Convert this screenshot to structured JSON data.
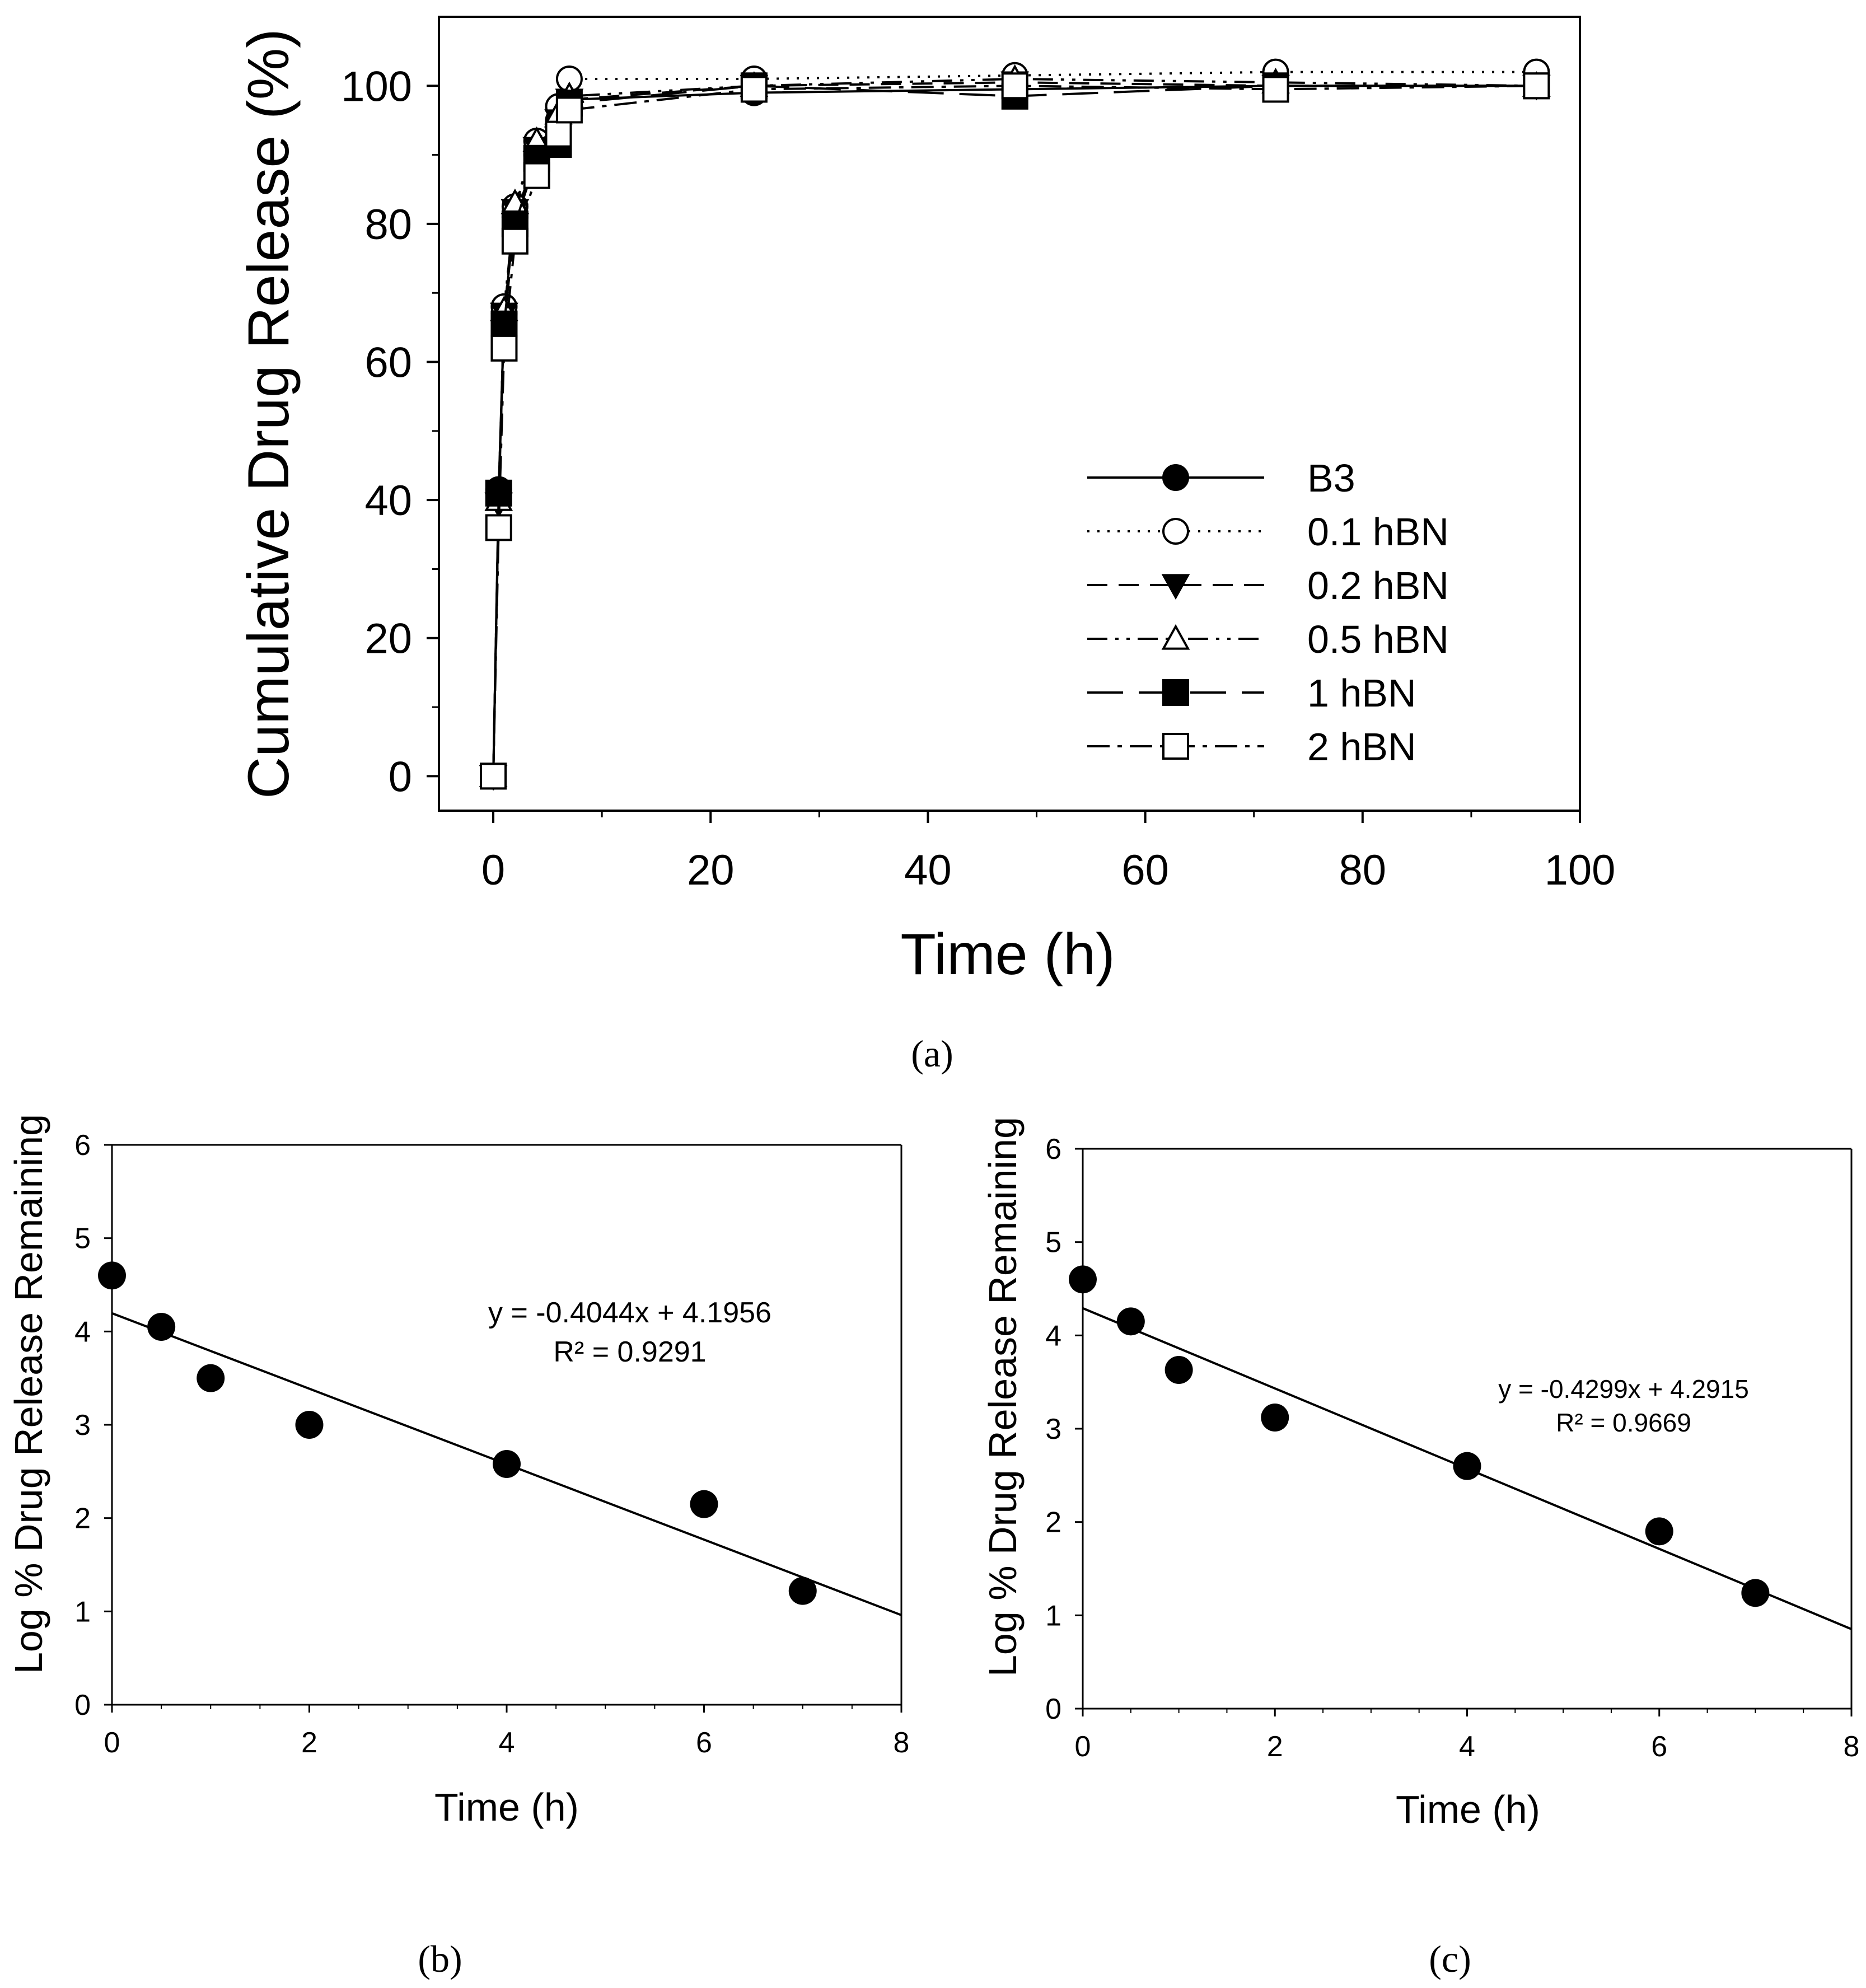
{
  "figure_panels": {
    "a": "(a)",
    "b": "(b)",
    "c": "(c)"
  },
  "colors": {
    "ink": "#000000",
    "background": "#ffffff",
    "hollow_fill": "#ffffff"
  },
  "chart_data": [
    {
      "id": "a",
      "type": "line",
      "xlabel": "Time (h)",
      "ylabel": "Cumulative Drug Release (%)",
      "xlim": [
        -5,
        100
      ],
      "ylim": [
        -5,
        110
      ],
      "xticks": [
        0,
        20,
        40,
        60,
        80,
        100
      ],
      "yticks": [
        0,
        20,
        40,
        60,
        80,
        100
      ],
      "legend_position": "center-right",
      "series": [
        {
          "name": "B3",
          "marker": "filled-circle",
          "dash": "solid",
          "x": [
            0,
            0.5,
            1,
            2,
            4,
            6,
            7,
            24,
            48,
            72,
            96
          ],
          "y": [
            0,
            41.5,
            67,
            81,
            90,
            95,
            98,
            99,
            99.5,
            100,
            100
          ]
        },
        {
          "name": "0.1 hBN",
          "marker": "open-circle",
          "dash": "dotted",
          "x": [
            0,
            0.5,
            1,
            2,
            4,
            6,
            7,
            24,
            48,
            72,
            96
          ],
          "y": [
            0,
            41,
            68,
            82.5,
            92,
            97,
            101,
            101,
            101.5,
            102,
            102
          ]
        },
        {
          "name": "0.2 hBN",
          "marker": "filled-triangle-down",
          "dash": "dashed",
          "x": [
            0,
            0.5,
            1,
            2,
            4,
            6,
            7,
            24,
            48,
            72,
            96
          ],
          "y": [
            0,
            39.5,
            67,
            82,
            91,
            95,
            98,
            100,
            100.5,
            100,
            100
          ]
        },
        {
          "name": "0.5 hBN",
          "marker": "open-triangle-up",
          "dash": "dash-dot-dot",
          "x": [
            0,
            0.5,
            1,
            2,
            4,
            6,
            7,
            24,
            48,
            72,
            96
          ],
          "y": [
            0,
            40,
            67.5,
            83,
            92,
            96,
            98.5,
            100,
            101,
            100.5,
            100
          ]
        },
        {
          "name": "1 hBN",
          "marker": "filled-square",
          "dash": "long-dash",
          "x": [
            0,
            0.5,
            1,
            2,
            4,
            6,
            7,
            24,
            48,
            72,
            96
          ],
          "y": [
            0,
            41,
            65.5,
            80,
            89.5,
            91.5,
            97.5,
            100,
            98.5,
            100,
            100
          ]
        },
        {
          "name": "2 hBN",
          "marker": "open-square",
          "dash": "dash-dot",
          "x": [
            0,
            0.5,
            1,
            2,
            4,
            6,
            7,
            24,
            48,
            72,
            96
          ],
          "y": [
            0,
            36,
            62,
            77.5,
            87,
            93,
            96.5,
            99.5,
            100,
            99.5,
            100
          ]
        }
      ]
    },
    {
      "id": "b",
      "type": "scatter",
      "xlabel": "Time (h)",
      "ylabel": "Log % Drug Release Remaining",
      "xlim": [
        0,
        8
      ],
      "ylim": [
        0,
        6
      ],
      "xticks": [
        0,
        2,
        4,
        6,
        8
      ],
      "yticks": [
        0,
        1,
        2,
        3,
        4,
        5,
        6
      ],
      "points": {
        "x": [
          0,
          0.5,
          1,
          2,
          4,
          6,
          7
        ],
        "y": [
          4.6,
          4.05,
          3.5,
          3.0,
          2.58,
          2.15,
          1.22
        ]
      },
      "trendline": {
        "slope": -0.4044,
        "intercept": 4.1956
      },
      "equation": "y = -0.4044x + 4.1956",
      "r_squared": "R² = 0.9291"
    },
    {
      "id": "c",
      "type": "scatter",
      "xlabel": "Time (h)",
      "ylabel": "Log % Drug Release Remaining",
      "xlim": [
        0,
        8
      ],
      "ylim": [
        0,
        6
      ],
      "xticks": [
        0,
        2,
        4,
        6,
        8
      ],
      "yticks": [
        0,
        1,
        2,
        3,
        4,
        5,
        6
      ],
      "points": {
        "x": [
          0,
          0.5,
          1,
          2,
          4,
          6,
          7
        ],
        "y": [
          4.6,
          4.15,
          3.63,
          3.12,
          2.6,
          1.9,
          1.24
        ]
      },
      "trendline": {
        "slope": -0.4299,
        "intercept": 4.2915
      },
      "equation": "y = -0.4299x + 4.2915",
      "r_squared": "R² = 0.9669"
    }
  ]
}
